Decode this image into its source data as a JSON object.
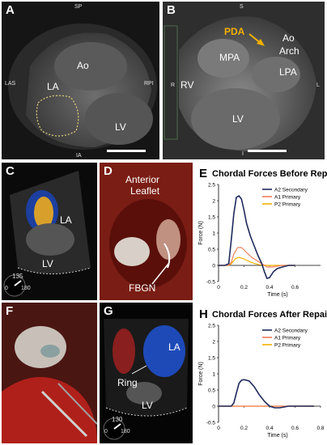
{
  "figure": {
    "panels": [
      {
        "letter": "A"
      },
      {
        "letter": "B"
      },
      {
        "letter": "C"
      },
      {
        "letter": "D"
      },
      {
        "letter": "E"
      },
      {
        "letter": "F"
      },
      {
        "letter": "G"
      },
      {
        "letter": "H"
      }
    ]
  },
  "panel_a": {
    "labels": {
      "ao": "Ao",
      "la": "LA",
      "lv": "LV"
    },
    "orientation": {
      "top": "SP",
      "left": "LAS",
      "right": "RPI",
      "bottom": "IA"
    }
  },
  "panel_b": {
    "labels": {
      "pda": "PDA",
      "ao_arch_1": "Ao",
      "ao_arch_2": "Arch",
      "mpa": "MPA",
      "lpa": "LPA",
      "rv": "RV",
      "lv": "LV"
    },
    "orientation": {
      "top": "S",
      "left": "R",
      "right": "L",
      "bottom": "I"
    }
  },
  "panel_c": {
    "labels": {
      "la": "LA",
      "lv": "LV"
    },
    "scale": {
      "top": "135",
      "left": "0",
      "right": "180"
    }
  },
  "panel_d": {
    "labels": {
      "anterior_1": "Anterior",
      "anterior_2": "Leaflet",
      "fbgn": "FBGN"
    }
  },
  "panel_g": {
    "labels": {
      "la": "LA",
      "ring": "Ring",
      "lv": "LV"
    },
    "scale": {
      "top": "130",
      "left": "0",
      "right": "180"
    }
  },
  "colors": {
    "a2": "#1f2a5c",
    "a1": "#f07d5c",
    "p2": "#f4b000"
  },
  "chart_data": [
    {
      "type": "line",
      "title": "Chordal Forces Before Repair",
      "xlabel": "Time (s)",
      "ylabel": "Force (N)",
      "xlim": [
        0,
        0.8
      ],
      "ylim": [
        -0.5,
        2.5
      ],
      "xticks": [
        0,
        0.2,
        0.4,
        0.6
      ],
      "yticks": [
        -0.5,
        0,
        0.5,
        1,
        1.5,
        2,
        2.5
      ],
      "tick_labels_x": [
        "0",
        "0.2",
        "0.4",
        "0.6"
      ],
      "tick_labels_y": [
        "-0.5",
        "0",
        "0.5",
        "1",
        "1.5",
        "2",
        "2.5"
      ],
      "legend": "top-right",
      "series": [
        {
          "name": "A2 Secondary",
          "x": [
            0.0,
            0.05,
            0.08,
            0.1,
            0.12,
            0.14,
            0.16,
            0.18,
            0.2,
            0.22,
            0.25,
            0.28,
            0.31,
            0.34,
            0.36,
            0.38,
            0.4,
            0.43,
            0.46,
            0.5,
            0.55,
            0.6
          ],
          "y": [
            0.0,
            0.0,
            0.05,
            0.8,
            1.6,
            2.1,
            2.15,
            2.05,
            1.7,
            1.3,
            0.9,
            0.6,
            0.3,
            0.05,
            -0.2,
            -0.4,
            -0.38,
            -0.2,
            -0.1,
            -0.05,
            0.0,
            0.0
          ]
        },
        {
          "name": "A1 Primary",
          "x": [
            0.0,
            0.08,
            0.1,
            0.12,
            0.15,
            0.18,
            0.22,
            0.26,
            0.3,
            0.34,
            0.38,
            0.42,
            0.5,
            0.6
          ],
          "y": [
            0.0,
            0.0,
            0.1,
            0.35,
            0.55,
            0.55,
            0.4,
            0.25,
            0.15,
            0.05,
            -0.05,
            -0.05,
            0.0,
            0.0
          ]
        },
        {
          "name": "P2 Primary",
          "x": [
            0.0,
            0.08,
            0.1,
            0.13,
            0.16,
            0.2,
            0.24,
            0.28,
            0.32,
            0.38,
            0.45,
            0.5,
            0.6
          ],
          "y": [
            0.0,
            0.0,
            0.05,
            0.2,
            0.25,
            0.2,
            0.12,
            0.06,
            0.02,
            0.0,
            0.0,
            0.0,
            0.0
          ]
        }
      ]
    },
    {
      "type": "line",
      "title": "Chordal Forces After Repair",
      "xlabel": "Time (s)",
      "ylabel": "Force (N)",
      "xlim": [
        0,
        0.8
      ],
      "ylim": [
        -0.5,
        2.5
      ],
      "xticks": [
        0,
        0.2,
        0.4,
        0.6,
        0.8
      ],
      "yticks": [
        -0.5,
        0,
        0.5,
        1,
        1.5,
        2,
        2.5
      ],
      "tick_labels_x": [
        "0",
        "0.2",
        "0.4",
        "0.6",
        "0.8"
      ],
      "tick_labels_y": [
        "-0.5",
        "0",
        "0.5",
        "1",
        "1.5",
        "2",
        "2.5"
      ],
      "legend": "top-right",
      "series": [
        {
          "name": "A2 Secondary",
          "x": [
            0.0,
            0.1,
            0.12,
            0.14,
            0.16,
            0.18,
            0.2,
            0.24,
            0.28,
            0.32,
            0.36,
            0.4,
            0.44,
            0.48,
            0.55,
            0.6,
            0.7,
            0.75
          ],
          "y": [
            0.0,
            0.0,
            0.1,
            0.4,
            0.7,
            0.8,
            0.82,
            0.78,
            0.6,
            0.35,
            0.15,
            0.0,
            -0.05,
            -0.05,
            0.0,
            0.0,
            0.0,
            0.0
          ]
        },
        {
          "name": "A1 Primary",
          "x": [
            0.0,
            0.75
          ],
          "y": [
            0.0,
            0.0
          ]
        },
        {
          "name": "P2 Primary",
          "x": [
            0.0,
            0.75
          ],
          "y": [
            0.0,
            0.0
          ]
        }
      ]
    }
  ]
}
